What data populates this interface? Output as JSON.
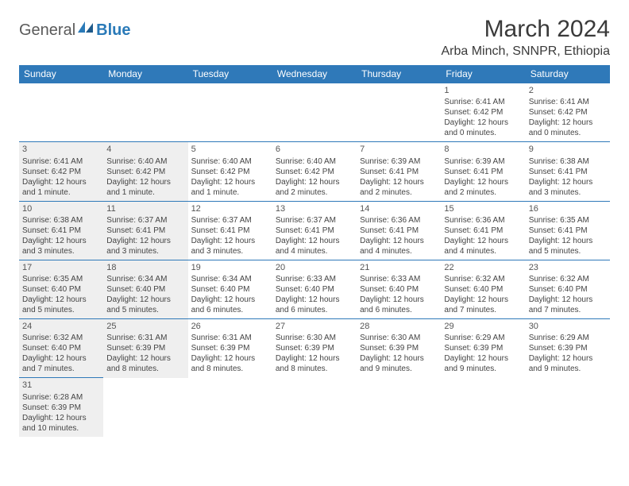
{
  "brand": {
    "part1": "General",
    "part2": "Blue"
  },
  "title": "March 2024",
  "location": "Arba Minch, SNNPR, Ethiopia",
  "colors": {
    "header_bg": "#2f79b9",
    "header_text": "#ffffff",
    "border": "#2f79b9",
    "shaded": "#efefef",
    "text": "#444444"
  },
  "weekdays": [
    "Sunday",
    "Monday",
    "Tuesday",
    "Wednesday",
    "Thursday",
    "Friday",
    "Saturday"
  ],
  "weeks": [
    [
      {
        "day": "",
        "lines": [],
        "shaded": false
      },
      {
        "day": "",
        "lines": [],
        "shaded": false
      },
      {
        "day": "",
        "lines": [],
        "shaded": false
      },
      {
        "day": "",
        "lines": [],
        "shaded": false
      },
      {
        "day": "",
        "lines": [],
        "shaded": false
      },
      {
        "day": "1",
        "lines": [
          "Sunrise: 6:41 AM",
          "Sunset: 6:42 PM",
          "Daylight: 12 hours",
          "and 0 minutes."
        ],
        "shaded": false
      },
      {
        "day": "2",
        "lines": [
          "Sunrise: 6:41 AM",
          "Sunset: 6:42 PM",
          "Daylight: 12 hours",
          "and 0 minutes."
        ],
        "shaded": false
      }
    ],
    [
      {
        "day": "3",
        "lines": [
          "Sunrise: 6:41 AM",
          "Sunset: 6:42 PM",
          "Daylight: 12 hours",
          "and 1 minute."
        ],
        "shaded": true
      },
      {
        "day": "4",
        "lines": [
          "Sunrise: 6:40 AM",
          "Sunset: 6:42 PM",
          "Daylight: 12 hours",
          "and 1 minute."
        ],
        "shaded": true
      },
      {
        "day": "5",
        "lines": [
          "Sunrise: 6:40 AM",
          "Sunset: 6:42 PM",
          "Daylight: 12 hours",
          "and 1 minute."
        ],
        "shaded": false
      },
      {
        "day": "6",
        "lines": [
          "Sunrise: 6:40 AM",
          "Sunset: 6:42 PM",
          "Daylight: 12 hours",
          "and 2 minutes."
        ],
        "shaded": false
      },
      {
        "day": "7",
        "lines": [
          "Sunrise: 6:39 AM",
          "Sunset: 6:41 PM",
          "Daylight: 12 hours",
          "and 2 minutes."
        ],
        "shaded": false
      },
      {
        "day": "8",
        "lines": [
          "Sunrise: 6:39 AM",
          "Sunset: 6:41 PM",
          "Daylight: 12 hours",
          "and 2 minutes."
        ],
        "shaded": false
      },
      {
        "day": "9",
        "lines": [
          "Sunrise: 6:38 AM",
          "Sunset: 6:41 PM",
          "Daylight: 12 hours",
          "and 3 minutes."
        ],
        "shaded": false
      }
    ],
    [
      {
        "day": "10",
        "lines": [
          "Sunrise: 6:38 AM",
          "Sunset: 6:41 PM",
          "Daylight: 12 hours",
          "and 3 minutes."
        ],
        "shaded": true
      },
      {
        "day": "11",
        "lines": [
          "Sunrise: 6:37 AM",
          "Sunset: 6:41 PM",
          "Daylight: 12 hours",
          "and 3 minutes."
        ],
        "shaded": true
      },
      {
        "day": "12",
        "lines": [
          "Sunrise: 6:37 AM",
          "Sunset: 6:41 PM",
          "Daylight: 12 hours",
          "and 3 minutes."
        ],
        "shaded": false
      },
      {
        "day": "13",
        "lines": [
          "Sunrise: 6:37 AM",
          "Sunset: 6:41 PM",
          "Daylight: 12 hours",
          "and 4 minutes."
        ],
        "shaded": false
      },
      {
        "day": "14",
        "lines": [
          "Sunrise: 6:36 AM",
          "Sunset: 6:41 PM",
          "Daylight: 12 hours",
          "and 4 minutes."
        ],
        "shaded": false
      },
      {
        "day": "15",
        "lines": [
          "Sunrise: 6:36 AM",
          "Sunset: 6:41 PM",
          "Daylight: 12 hours",
          "and 4 minutes."
        ],
        "shaded": false
      },
      {
        "day": "16",
        "lines": [
          "Sunrise: 6:35 AM",
          "Sunset: 6:41 PM",
          "Daylight: 12 hours",
          "and 5 minutes."
        ],
        "shaded": false
      }
    ],
    [
      {
        "day": "17",
        "lines": [
          "Sunrise: 6:35 AM",
          "Sunset: 6:40 PM",
          "Daylight: 12 hours",
          "and 5 minutes."
        ],
        "shaded": true
      },
      {
        "day": "18",
        "lines": [
          "Sunrise: 6:34 AM",
          "Sunset: 6:40 PM",
          "Daylight: 12 hours",
          "and 5 minutes."
        ],
        "shaded": true
      },
      {
        "day": "19",
        "lines": [
          "Sunrise: 6:34 AM",
          "Sunset: 6:40 PM",
          "Daylight: 12 hours",
          "and 6 minutes."
        ],
        "shaded": false
      },
      {
        "day": "20",
        "lines": [
          "Sunrise: 6:33 AM",
          "Sunset: 6:40 PM",
          "Daylight: 12 hours",
          "and 6 minutes."
        ],
        "shaded": false
      },
      {
        "day": "21",
        "lines": [
          "Sunrise: 6:33 AM",
          "Sunset: 6:40 PM",
          "Daylight: 12 hours",
          "and 6 minutes."
        ],
        "shaded": false
      },
      {
        "day": "22",
        "lines": [
          "Sunrise: 6:32 AM",
          "Sunset: 6:40 PM",
          "Daylight: 12 hours",
          "and 7 minutes."
        ],
        "shaded": false
      },
      {
        "day": "23",
        "lines": [
          "Sunrise: 6:32 AM",
          "Sunset: 6:40 PM",
          "Daylight: 12 hours",
          "and 7 minutes."
        ],
        "shaded": false
      }
    ],
    [
      {
        "day": "24",
        "lines": [
          "Sunrise: 6:32 AM",
          "Sunset: 6:40 PM",
          "Daylight: 12 hours",
          "and 7 minutes."
        ],
        "shaded": true
      },
      {
        "day": "25",
        "lines": [
          "Sunrise: 6:31 AM",
          "Sunset: 6:39 PM",
          "Daylight: 12 hours",
          "and 8 minutes."
        ],
        "shaded": true
      },
      {
        "day": "26",
        "lines": [
          "Sunrise: 6:31 AM",
          "Sunset: 6:39 PM",
          "Daylight: 12 hours",
          "and 8 minutes."
        ],
        "shaded": false
      },
      {
        "day": "27",
        "lines": [
          "Sunrise: 6:30 AM",
          "Sunset: 6:39 PM",
          "Daylight: 12 hours",
          "and 8 minutes."
        ],
        "shaded": false
      },
      {
        "day": "28",
        "lines": [
          "Sunrise: 6:30 AM",
          "Sunset: 6:39 PM",
          "Daylight: 12 hours",
          "and 9 minutes."
        ],
        "shaded": false
      },
      {
        "day": "29",
        "lines": [
          "Sunrise: 6:29 AM",
          "Sunset: 6:39 PM",
          "Daylight: 12 hours",
          "and 9 minutes."
        ],
        "shaded": false
      },
      {
        "day": "30",
        "lines": [
          "Sunrise: 6:29 AM",
          "Sunset: 6:39 PM",
          "Daylight: 12 hours",
          "and 9 minutes."
        ],
        "shaded": false
      }
    ],
    [
      {
        "day": "31",
        "lines": [
          "Sunrise: 6:28 AM",
          "Sunset: 6:39 PM",
          "Daylight: 12 hours",
          "and 10 minutes."
        ],
        "shaded": true
      },
      {
        "day": "",
        "lines": [],
        "shaded": false
      },
      {
        "day": "",
        "lines": [],
        "shaded": false
      },
      {
        "day": "",
        "lines": [],
        "shaded": false
      },
      {
        "day": "",
        "lines": [],
        "shaded": false
      },
      {
        "day": "",
        "lines": [],
        "shaded": false
      },
      {
        "day": "",
        "lines": [],
        "shaded": false
      }
    ]
  ]
}
